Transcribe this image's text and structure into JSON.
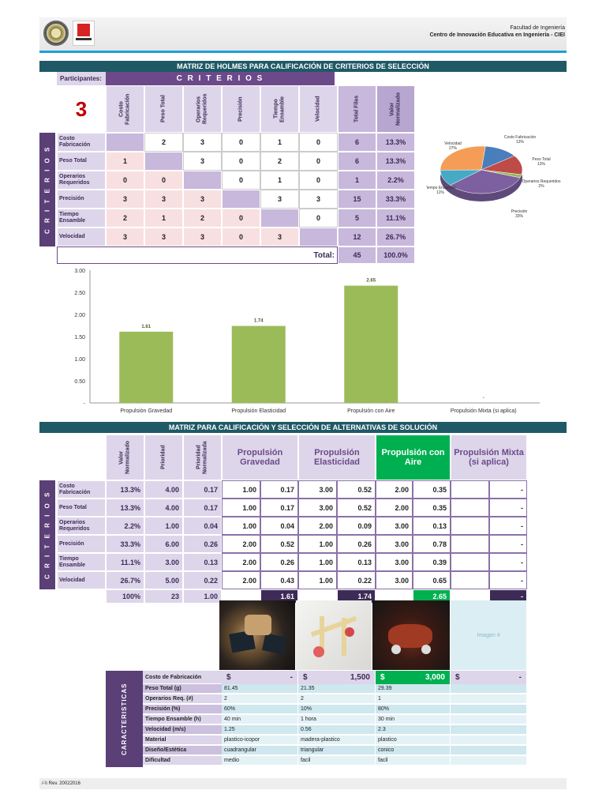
{
  "header": {
    "faculty": "Facultad de Ingeniería",
    "center": "Centro de Innovación Educativa en Ingeniería - CIEI"
  },
  "matrix1": {
    "title": "MATRIZ DE HOLMES PARA CALIFICACIÓN DE CRITERIOS DE SELECCIÓN",
    "participants_label": "Participantes:",
    "participants": "3",
    "criterios_label": "C R I T E R I O S",
    "side_label": "C R I T E R I O S",
    "columns": [
      "Costo Fabricación",
      "Peso Total",
      "Operarios Requeridos",
      "Precisión",
      "Tiempo Ensamble",
      "Velocidad",
      "Total Filas",
      "Valor Normalizado"
    ],
    "rows": [
      {
        "label": "Costo Fabricación",
        "values": [
          "",
          "2",
          "3",
          "0",
          "1",
          "0"
        ],
        "total": "6",
        "norm": "13.3%"
      },
      {
        "label": "Peso Total",
        "values": [
          "1",
          "",
          "3",
          "0",
          "2",
          "0"
        ],
        "total": "6",
        "norm": "13.3%"
      },
      {
        "label": "Operarios Requeridos",
        "values": [
          "0",
          "0",
          "",
          "0",
          "1",
          "0"
        ],
        "total": "1",
        "norm": "2.2%"
      },
      {
        "label": "Precisión",
        "values": [
          "3",
          "3",
          "3",
          "",
          "3",
          "3"
        ],
        "total": "15",
        "norm": "33.3%"
      },
      {
        "label": "Tiempo Ensamble",
        "values": [
          "2",
          "1",
          "2",
          "0",
          "",
          "0"
        ],
        "total": "5",
        "norm": "11.1%"
      },
      {
        "label": "Velocidad",
        "values": [
          "3",
          "3",
          "3",
          "0",
          "3",
          ""
        ],
        "total": "12",
        "norm": "26.7%"
      }
    ],
    "total_label": "Total:",
    "total": "45",
    "total_norm": "100.0%"
  },
  "pie_chart": {
    "type": "pie",
    "slices": [
      {
        "label": "Costo Fabricación",
        "pct": "13%",
        "value": 13.3,
        "color": "#4a7ebb"
      },
      {
        "label": "Peso Total",
        "pct": "13%",
        "value": 13.3,
        "color": "#be4b48"
      },
      {
        "label": "Operarios Requeridos",
        "pct": "2%",
        "value": 2.2,
        "color": "#98b954"
      },
      {
        "label": "Precisión",
        "pct": "33%",
        "value": 33.3,
        "color": "#7d60a0"
      },
      {
        "label": "Tiempo Ensamble",
        "pct": "11%",
        "value": 11.1,
        "color": "#46aac5"
      },
      {
        "label": "Velocidad",
        "pct": "27%",
        "value": 26.7,
        "color": "#f59d56"
      }
    ]
  },
  "chart_data": {
    "type": "bar",
    "categories": [
      "Propulsión Gravedad",
      "Propulsión Elasticidad",
      "Propulsión con Aire",
      "Propulsión Mixta (si aplica)"
    ],
    "values": [
      1.61,
      1.74,
      2.65,
      0
    ],
    "value_labels": [
      "1.61",
      "1.74",
      "2.65",
      "-"
    ],
    "ylim": [
      0,
      3.0
    ],
    "yticks": [
      "3.00",
      "2.50",
      "2.00",
      "1.50",
      "1.00",
      "0.50",
      "-"
    ],
    "bar_color": "#9bbb59"
  },
  "matrix2": {
    "title": "MATRIZ PARA CALIFICACIÓN Y SELECCIÓN DE ALTERNATIVAS DE SOLUCIÓN",
    "side_label": "C R I T E R I O S",
    "col_heads": [
      "Valor Normalizado",
      "Prioridad",
      "Prioridad Normalizada"
    ],
    "alternatives": [
      "Propulsión Gravedad",
      "Propulsión Elasticidad",
      "Propulsión con Aire",
      "Propulsión Mixta (si aplica)"
    ],
    "rows": [
      {
        "label": "Costo Fabricación",
        "vn": "13.3%",
        "p": "4.00",
        "pn": "0.17",
        "a": [
          "1.00",
          "0.17",
          "3.00",
          "0.52",
          "2.00",
          "0.35",
          "",
          "-"
        ]
      },
      {
        "label": "Peso Total",
        "vn": "13.3%",
        "p": "4.00",
        "pn": "0.17",
        "a": [
          "1.00",
          "0.17",
          "3.00",
          "0.52",
          "2.00",
          "0.35",
          "",
          "-"
        ]
      },
      {
        "label": "Operarios Requeridos",
        "vn": "2.2%",
        "p": "1.00",
        "pn": "0.04",
        "a": [
          "1.00",
          "0.04",
          "2.00",
          "0.09",
          "3.00",
          "0.13",
          "",
          "-"
        ]
      },
      {
        "label": "Precisión",
        "vn": "33.3%",
        "p": "6.00",
        "pn": "0.26",
        "a": [
          "2.00",
          "0.52",
          "1.00",
          "0.26",
          "3.00",
          "0.78",
          "",
          "-"
        ]
      },
      {
        "label": "Tiempo Ensamble",
        "vn": "11.1%",
        "p": "3.00",
        "pn": "0.13",
        "a": [
          "2.00",
          "0.26",
          "1.00",
          "0.13",
          "3.00",
          "0.39",
          "",
          "-"
        ]
      },
      {
        "label": "Velocidad",
        "vn": "26.7%",
        "p": "5.00",
        "pn": "0.22",
        "a": [
          "2.00",
          "0.43",
          "1.00",
          "0.22",
          "3.00",
          "0.65",
          "",
          "-"
        ]
      }
    ],
    "totals": {
      "vn": "100%",
      "p": "23",
      "pn": "1.00",
      "a": [
        "1.61",
        "1.74",
        "2.65",
        "-"
      ]
    }
  },
  "images": {
    "image4_label": "Imagen 4"
  },
  "characteristics": {
    "side_label": "CARACTERISTICAS",
    "cost_label": "Costo de Fabricación",
    "currency": "$",
    "costs": [
      "-",
      "1,500",
      "3,000",
      "-"
    ],
    "rows": [
      {
        "label": "Peso Total (g)",
        "values": [
          "81.45",
          "21.35",
          "29.39",
          ""
        ]
      },
      {
        "label": "Operarios Req. (#)",
        "values": [
          "2",
          "2",
          "1",
          ""
        ]
      },
      {
        "label": "Precisión (%)",
        "values": [
          "60%",
          "10%",
          "80%",
          ""
        ]
      },
      {
        "label": "Tiempo Ensamble (h)",
        "values": [
          "40 min",
          "1 hora",
          "30 min",
          ""
        ]
      },
      {
        "label": "Velocidad (m/s)",
        "values": [
          "1.25",
          "0.56",
          "2.3",
          ""
        ]
      },
      {
        "label": "Material",
        "values": [
          "plastico-icopor",
          "madera-plastico",
          "plastico",
          ""
        ]
      },
      {
        "label": "Diseño/Estética",
        "values": [
          "cuadrangular",
          "triangular",
          "conico",
          ""
        ]
      },
      {
        "label": "Dificultad",
        "values": [
          "medio",
          "facil",
          "facil",
          ""
        ]
      }
    ]
  },
  "footer": {
    "text": "/-\\\\ Rev. 20022016"
  }
}
